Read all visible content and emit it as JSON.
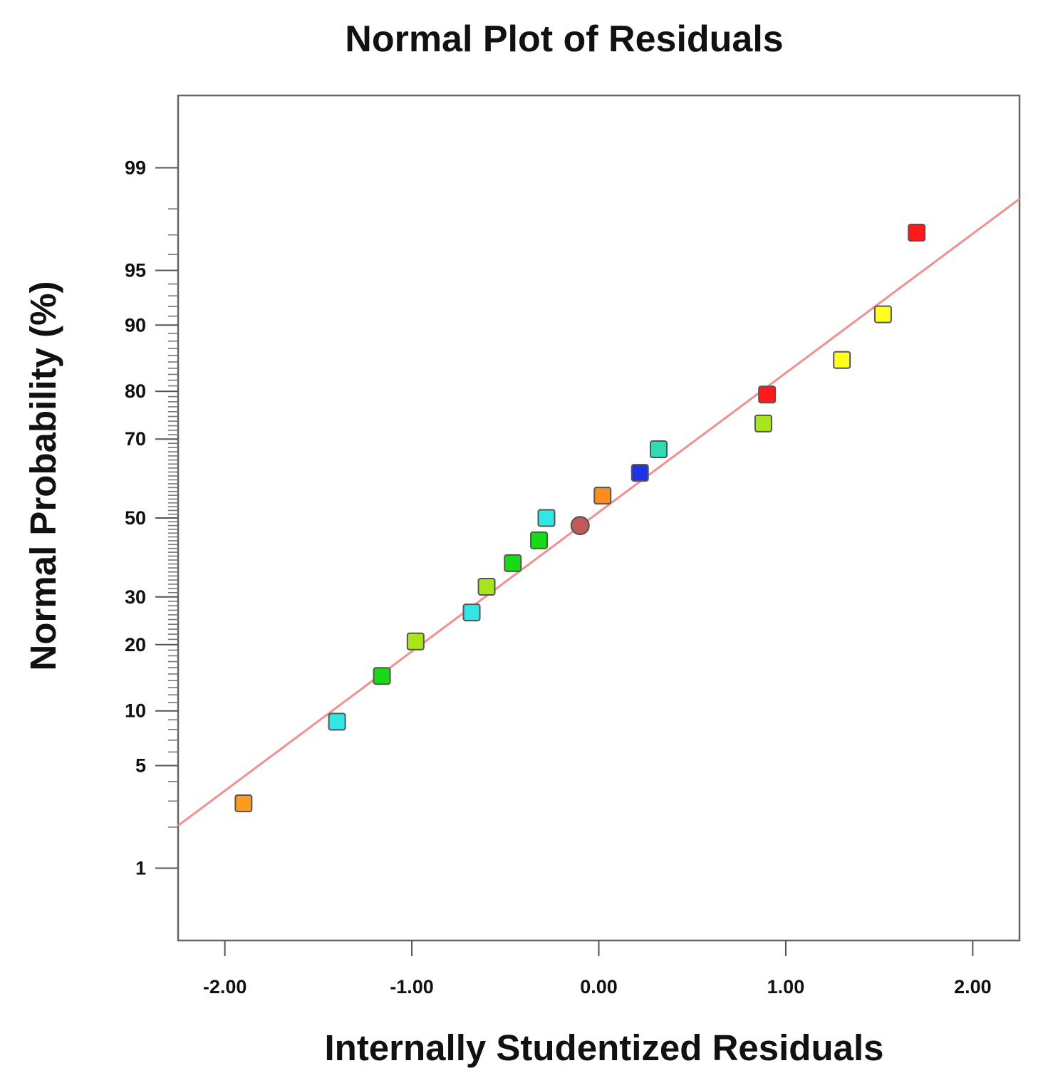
{
  "chart_data": {
    "type": "scatter",
    "title": "Normal Plot of Residuals",
    "xlabel": "Internally Studentized Residuals",
    "ylabel": "Normal Probability (%)",
    "xlim": [
      -2.25,
      2.25
    ],
    "y_scale": "normal-probability",
    "ylim_percent": [
      0.25,
      99.75
    ],
    "x_ticks": [
      -2.0,
      -1.0,
      0.0,
      1.0,
      2.0
    ],
    "x_tick_labels": [
      "-2.00",
      "-1.00",
      "0.00",
      "1.00",
      "2.00"
    ],
    "y_ticks": [
      1,
      5,
      10,
      20,
      30,
      50,
      70,
      80,
      90,
      95,
      99
    ],
    "y_tick_labels": [
      "1",
      "5",
      "10",
      "20",
      "30",
      "50",
      "70",
      "80",
      "90",
      "95",
      "99"
    ],
    "y_minor_ticks": [
      2,
      3,
      4,
      6,
      7,
      8,
      9,
      11,
      12,
      13,
      14,
      15,
      16,
      17,
      18,
      19,
      21,
      22,
      23,
      24,
      25,
      26,
      27,
      28,
      29,
      31,
      32,
      33,
      34,
      35,
      36,
      37,
      38,
      39,
      40,
      41,
      42,
      43,
      44,
      45,
      46,
      47,
      48,
      49,
      51,
      52,
      53,
      54,
      55,
      56,
      57,
      58,
      59,
      60,
      61,
      62,
      63,
      64,
      65,
      66,
      67,
      68,
      69,
      71,
      72,
      73,
      74,
      75,
      76,
      77,
      78,
      79,
      81,
      82,
      83,
      84,
      85,
      86,
      87,
      88,
      89,
      91,
      92,
      93,
      94,
      96,
      97,
      98
    ],
    "fit_line": {
      "x": [
        -2.25,
        2.25
      ],
      "p": [
        2.05,
        98.3
      ],
      "color": "#f29090"
    },
    "points": [
      {
        "x": -1.9,
        "p": 2.9,
        "color": "#ff9a1c",
        "shape": "square"
      },
      {
        "x": -1.4,
        "p": 8.8,
        "color": "#33e6e6",
        "shape": "square"
      },
      {
        "x": -1.16,
        "p": 14.7,
        "color": "#19d919",
        "shape": "square"
      },
      {
        "x": -0.98,
        "p": 20.6,
        "color": "#a8e61a",
        "shape": "square"
      },
      {
        "x": -0.68,
        "p": 26.5,
        "color": "#33e6e6",
        "shape": "square"
      },
      {
        "x": -0.6,
        "p": 32.4,
        "color": "#a8e61a",
        "shape": "square"
      },
      {
        "x": -0.46,
        "p": 38.2,
        "color": "#19d919",
        "shape": "square"
      },
      {
        "x": -0.32,
        "p": 44.1,
        "color": "#19d919",
        "shape": "square"
      },
      {
        "x": -0.28,
        "p": 50.0,
        "color": "#33e6e6",
        "shape": "square"
      },
      {
        "x": -0.1,
        "p": 48.0,
        "color": "#c05a5a",
        "shape": "circle"
      },
      {
        "x": 0.02,
        "p": 55.9,
        "color": "#ff8c1a",
        "shape": "square"
      },
      {
        "x": 0.22,
        "p": 61.8,
        "color": "#1f33e6",
        "shape": "square"
      },
      {
        "x": 0.32,
        "p": 67.6,
        "color": "#33d9b3",
        "shape": "square"
      },
      {
        "x": 0.88,
        "p": 73.5,
        "color": "#a8e61a",
        "shape": "square"
      },
      {
        "x": 0.9,
        "p": 79.4,
        "color": "#ff1a1a",
        "shape": "square"
      },
      {
        "x": 1.3,
        "p": 85.3,
        "color": "#ffff1a",
        "shape": "square"
      },
      {
        "x": 1.52,
        "p": 91.2,
        "color": "#ffff1a",
        "shape": "square"
      },
      {
        "x": 1.7,
        "p": 97.1,
        "color": "#ff1a1a",
        "shape": "square"
      }
    ]
  }
}
